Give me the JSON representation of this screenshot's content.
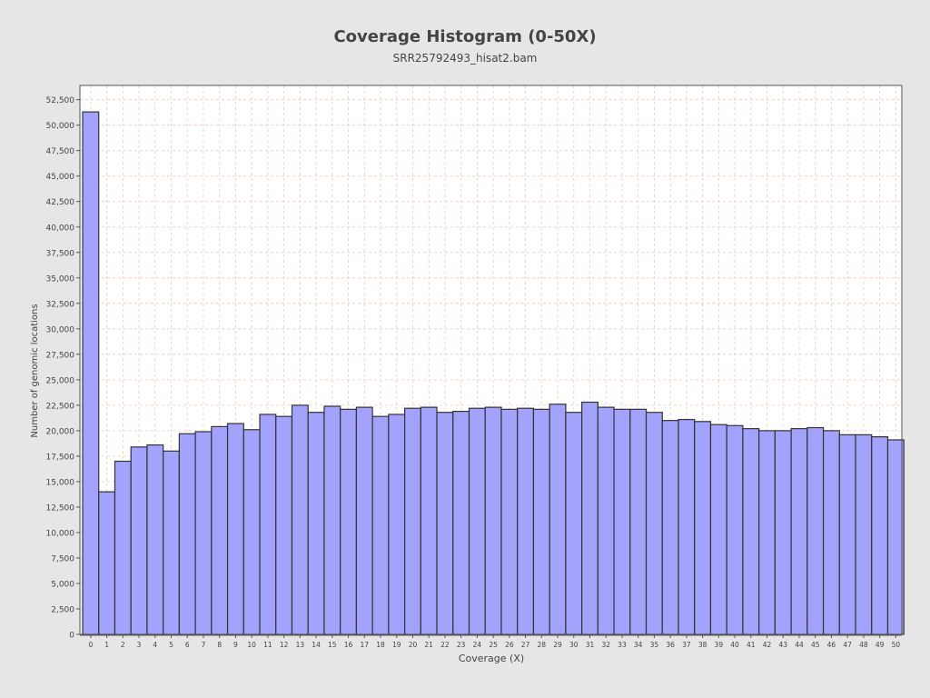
{
  "chart_data": {
    "type": "bar",
    "title": "Coverage Histogram (0-50X)",
    "subtitle": "SRR25792493_hisat2.bam",
    "xlabel": "Coverage (X)",
    "ylabel": "Number of genomic locations",
    "categories": [
      "0",
      "1",
      "2",
      "3",
      "4",
      "5",
      "6",
      "7",
      "8",
      "9",
      "10",
      "11",
      "12",
      "13",
      "14",
      "15",
      "16",
      "17",
      "18",
      "19",
      "20",
      "21",
      "22",
      "23",
      "24",
      "25",
      "26",
      "27",
      "28",
      "29",
      "30",
      "31",
      "32",
      "33",
      "34",
      "35",
      "36",
      "37",
      "38",
      "39",
      "40",
      "41",
      "42",
      "43",
      "44",
      "45",
      "46",
      "47",
      "48",
      "49",
      "50"
    ],
    "values": [
      51300,
      14000,
      17000,
      18400,
      18600,
      18000,
      19700,
      19900,
      20400,
      20700,
      20100,
      21600,
      21400,
      22500,
      21800,
      22400,
      22100,
      22300,
      21400,
      21600,
      22200,
      22300,
      21800,
      21900,
      22200,
      22300,
      22100,
      22200,
      22100,
      22600,
      21800,
      22800,
      22300,
      22100,
      22100,
      21800,
      21000,
      21100,
      20900,
      20600,
      20500,
      20200,
      20000,
      20000,
      20200,
      20300,
      20000,
      19600,
      19600,
      19400,
      19100
    ],
    "yticks": [
      "0",
      "2,500",
      "5,000",
      "7,500",
      "10,000",
      "12,500",
      "15,000",
      "17,500",
      "20,000",
      "22,500",
      "25,000",
      "27,500",
      "30,000",
      "32,500",
      "35,000",
      "37,500",
      "40,000",
      "42,500",
      "45,000",
      "47,500",
      "50,000",
      "52,500"
    ],
    "ylim": [
      0,
      53900
    ],
    "grid": true,
    "colors": {
      "bar_fill": "#a3a3fd",
      "bar_stroke": "#333333",
      "grid": "#f0c8b4",
      "plot_bg": "#ffffff",
      "axis": "#555555",
      "text": "#444444"
    }
  }
}
